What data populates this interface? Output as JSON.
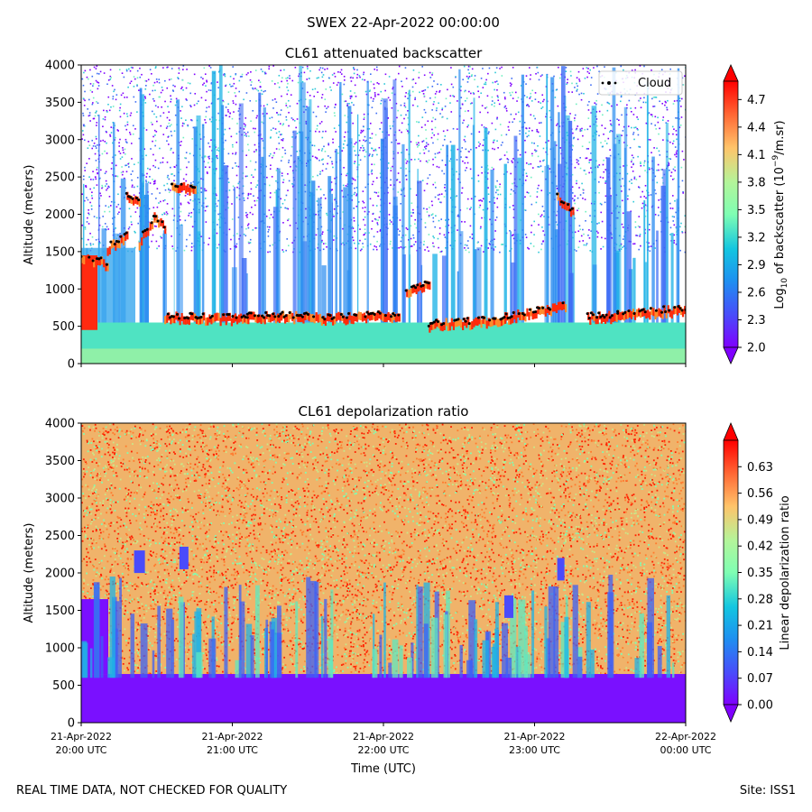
{
  "figure": {
    "suptitle": "SWEX 22-Apr-2022 00:00:00",
    "footer_left": "REAL TIME DATA, NOT CHECKED FOR QUALITY",
    "footer_right": "Site: ISS1"
  },
  "chart_data": [
    {
      "type": "heatmap",
      "title": "CL61 attenuated backscatter",
      "ylabel": "Altitude (meters)",
      "xlabel": "",
      "ylim": [
        0,
        4000
      ],
      "yticks": [
        0,
        500,
        1000,
        1500,
        2000,
        2500,
        3000,
        3500,
        4000
      ],
      "x_ticks": [],
      "colorbar": {
        "label_pre": "Log",
        "label_sub": "10",
        "label_mid": " of backscatter (10",
        "label_sup": "−9",
        "label_post": "/m.sr)",
        "range": [
          2.0,
          4.9
        ],
        "ticks": [
          "2.0",
          "2.3",
          "2.6",
          "2.9",
          "3.2",
          "3.5",
          "3.8",
          "4.1",
          "4.4",
          "4.7"
        ],
        "extend": "both"
      },
      "legend": {
        "label": "Cloud",
        "location": "upper right"
      },
      "cloud_base_segments": [
        {
          "t0": 0.0,
          "t1": 0.17,
          "alt0": 1400,
          "alt1": 1320
        },
        {
          "t0": 0.17,
          "t1": 0.3,
          "alt0": 1520,
          "alt1": 1700
        },
        {
          "t0": 0.3,
          "t1": 0.38,
          "alt0": 2200,
          "alt1": 2180
        },
        {
          "t0": 0.38,
          "t1": 0.48,
          "alt0": 1600,
          "alt1": 1900
        },
        {
          "t0": 0.48,
          "t1": 0.55,
          "alt0": 1950,
          "alt1": 1800
        },
        {
          "t0": 0.6,
          "t1": 0.75,
          "alt0": 2350,
          "alt1": 2320
        },
        {
          "t0": 0.55,
          "t1": 1.1,
          "alt0": 600,
          "alt1": 580
        },
        {
          "t0": 1.1,
          "t1": 1.55,
          "alt0": 620,
          "alt1": 600
        },
        {
          "t0": 1.55,
          "t1": 2.1,
          "alt0": 590,
          "alt1": 620
        },
        {
          "t0": 2.15,
          "t1": 2.3,
          "alt0": 950,
          "alt1": 1050
        },
        {
          "t0": 2.3,
          "t1": 2.8,
          "alt0": 500,
          "alt1": 560
        },
        {
          "t0": 2.8,
          "t1": 3.2,
          "alt0": 600,
          "alt1": 750
        },
        {
          "t0": 3.15,
          "t1": 3.25,
          "alt0": 2200,
          "alt1": 2000
        },
        {
          "t0": 3.35,
          "t1": 3.55,
          "alt0": 600,
          "alt1": 620
        },
        {
          "t0": 3.55,
          "t1": 4.0,
          "alt0": 650,
          "alt1": 700
        }
      ]
    },
    {
      "type": "heatmap",
      "title": "CL61 depolarization ratio",
      "ylabel": "Altitude (meters)",
      "xlabel": "Time (UTC)",
      "ylim": [
        0,
        4000
      ],
      "yticks": [
        0,
        500,
        1000,
        1500,
        2000,
        2500,
        3000,
        3500,
        4000
      ],
      "x_ticks": [
        {
          "line1": "21-Apr-2022",
          "line2": "20:00 UTC"
        },
        {
          "line1": "21-Apr-2022",
          "line2": "21:00 UTC"
        },
        {
          "line1": "21-Apr-2022",
          "line2": "22:00 UTC"
        },
        {
          "line1": "21-Apr-2022",
          "line2": "23:00 UTC"
        },
        {
          "line1": "22-Apr-2022",
          "line2": "00:00 UTC"
        }
      ],
      "colorbar": {
        "label": "Linear depolarization ratio",
        "range": [
          0.0,
          0.7
        ],
        "ticks": [
          "0.00",
          "0.07",
          "0.14",
          "0.21",
          "0.28",
          "0.35",
          "0.42",
          "0.49",
          "0.56",
          "0.63"
        ],
        "extend": "both"
      }
    }
  ]
}
